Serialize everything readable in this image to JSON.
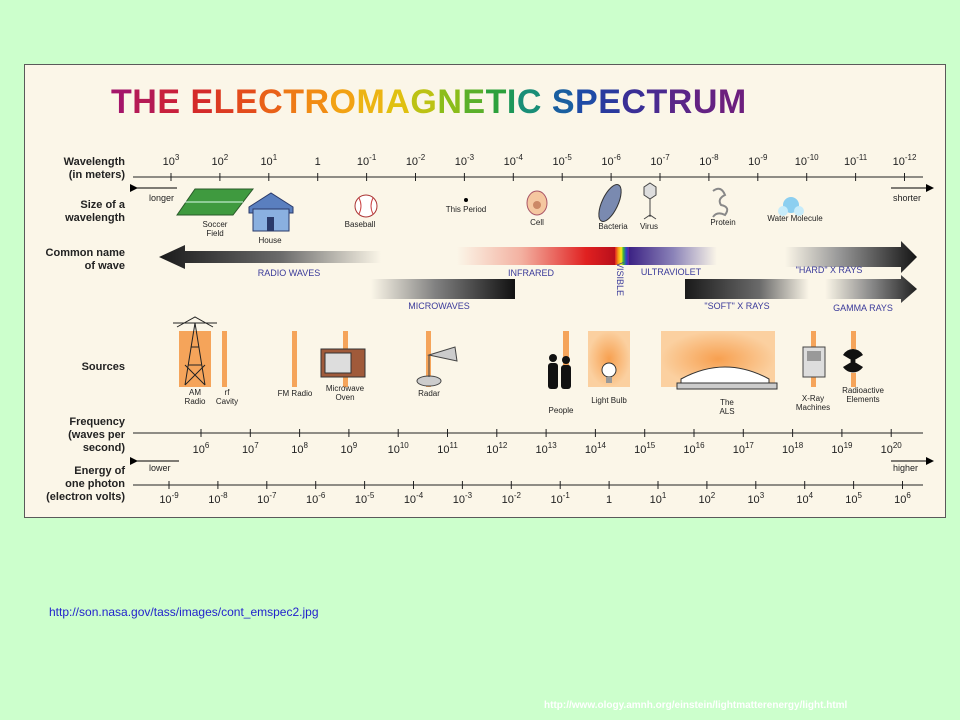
{
  "title": {
    "letters": [
      {
        "t": "T",
        "c": "#a5156a"
      },
      {
        "t": "H",
        "c": "#b51a55"
      },
      {
        "t": "E",
        "c": "#c8203d"
      },
      {
        "t": " ",
        "c": "#000"
      },
      {
        "t": "E",
        "c": "#d42a2a"
      },
      {
        "t": "L",
        "c": "#dc3b22"
      },
      {
        "t": "E",
        "c": "#e34c1c"
      },
      {
        "t": "C",
        "c": "#e96118"
      },
      {
        "t": "T",
        "c": "#ee7a16"
      },
      {
        "t": "R",
        "c": "#f18c14"
      },
      {
        "t": "O",
        "c": "#f2a213"
      },
      {
        "t": "M",
        "c": "#ecb414"
      },
      {
        "t": "A",
        "c": "#e0c010"
      },
      {
        "t": "G",
        "c": "#bcc214"
      },
      {
        "t": "N",
        "c": "#8bbd1a"
      },
      {
        "t": "E",
        "c": "#5bb02a"
      },
      {
        "t": "T",
        "c": "#2da13c"
      },
      {
        "t": "I",
        "c": "#1d9759"
      },
      {
        "t": "C",
        "c": "#198e77"
      },
      {
        "t": " ",
        "c": "#000"
      },
      {
        "t": "S",
        "c": "#1a5fa0"
      },
      {
        "t": "P",
        "c": "#1f4ba6"
      },
      {
        "t": "E",
        "c": "#2a3a9e"
      },
      {
        "t": "C",
        "c": "#3a2f96"
      },
      {
        "t": "T",
        "c": "#4a2a90"
      },
      {
        "t": "R",
        "c": "#5a2688"
      },
      {
        "t": "U",
        "c": "#642283"
      },
      {
        "t": "M",
        "c": "#6c1f7e"
      }
    ]
  },
  "rows": {
    "wavelength": "Wavelength (in meters)",
    "size": "Size of a wavelength",
    "common": "Common name of wave",
    "sources": "Sources",
    "frequency": "Frequency (waves per second)",
    "energy": "Energy of one photon (electron volts)"
  },
  "wavelength_ticks": [
    {
      "b": "10",
      "e": "3"
    },
    {
      "b": "10",
      "e": "2"
    },
    {
      "b": "10",
      "e": "1"
    },
    {
      "b": "1",
      "e": ""
    },
    {
      "b": "10",
      "e": "-1"
    },
    {
      "b": "10",
      "e": "-2"
    },
    {
      "b": "10",
      "e": "-3"
    },
    {
      "b": "10",
      "e": "-4"
    },
    {
      "b": "10",
      "e": "-5"
    },
    {
      "b": "10",
      "e": "-6"
    },
    {
      "b": "10",
      "e": "-7"
    },
    {
      "b": "10",
      "e": "-8"
    },
    {
      "b": "10",
      "e": "-9"
    },
    {
      "b": "10",
      "e": "-10"
    },
    {
      "b": "10",
      "e": "-11"
    },
    {
      "b": "10",
      "e": "-12"
    }
  ],
  "longer": "longer",
  "shorter": "shorter",
  "size_labels": [
    "Soccer Field",
    "House",
    "Baseball",
    "This Period",
    "Cell",
    "Bacteria",
    "Virus",
    "Protein",
    "Water Molecule"
  ],
  "wave_names": [
    "RADIO WAVES",
    "MICROWAVES",
    "INFRARED",
    "VISIBLE",
    "ULTRAVIOLET",
    "\"HARD\" X RAYS",
    "\"SOFT\" X RAYS",
    "GAMMA RAYS"
  ],
  "source_labels": [
    "AM Radio",
    "rf Cavity",
    "FM Radio",
    "Microwave Oven",
    "Radar",
    "People",
    "Light Bulb",
    "The ALS",
    "X-Ray Machines",
    "Radioactive Elements"
  ],
  "frequency_ticks": [
    {
      "b": "10",
      "e": "6"
    },
    {
      "b": "10",
      "e": "7"
    },
    {
      "b": "10",
      "e": "8"
    },
    {
      "b": "10",
      "e": "9"
    },
    {
      "b": "10",
      "e": "10"
    },
    {
      "b": "10",
      "e": "11"
    },
    {
      "b": "10",
      "e": "12"
    },
    {
      "b": "10",
      "e": "13"
    },
    {
      "b": "10",
      "e": "14"
    },
    {
      "b": "10",
      "e": "15"
    },
    {
      "b": "10",
      "e": "16"
    },
    {
      "b": "10",
      "e": "17"
    },
    {
      "b": "10",
      "e": "18"
    },
    {
      "b": "10",
      "e": "19"
    },
    {
      "b": "10",
      "e": "20"
    }
  ],
  "lower": "lower",
  "higher": "higher",
  "energy_ticks": [
    {
      "b": "10",
      "e": "-9"
    },
    {
      "b": "10",
      "e": "-8"
    },
    {
      "b": "10",
      "e": "-7"
    },
    {
      "b": "10",
      "e": "-6"
    },
    {
      "b": "10",
      "e": "-5"
    },
    {
      "b": "10",
      "e": "-4"
    },
    {
      "b": "10",
      "e": "-3"
    },
    {
      "b": "10",
      "e": "-2"
    },
    {
      "b": "10",
      "e": "-1"
    },
    {
      "b": "1",
      "e": ""
    },
    {
      "b": "10",
      "e": "1"
    },
    {
      "b": "10",
      "e": "2"
    },
    {
      "b": "10",
      "e": "3"
    },
    {
      "b": "10",
      "e": "4"
    },
    {
      "b": "10",
      "e": "5"
    },
    {
      "b": "10",
      "e": "6"
    }
  ],
  "source_url": "http://son.nasa.gov/tass/images/cont_emspec2.jpg",
  "ref_url": "http://www.ology.amnh.org/einstein/lightmatterenergy/light.html",
  "colors": {
    "background": "#ccffcc",
    "panel": "#fbf6e8",
    "orange": "#f29a4a",
    "label_blue": "#3a3a9a"
  }
}
